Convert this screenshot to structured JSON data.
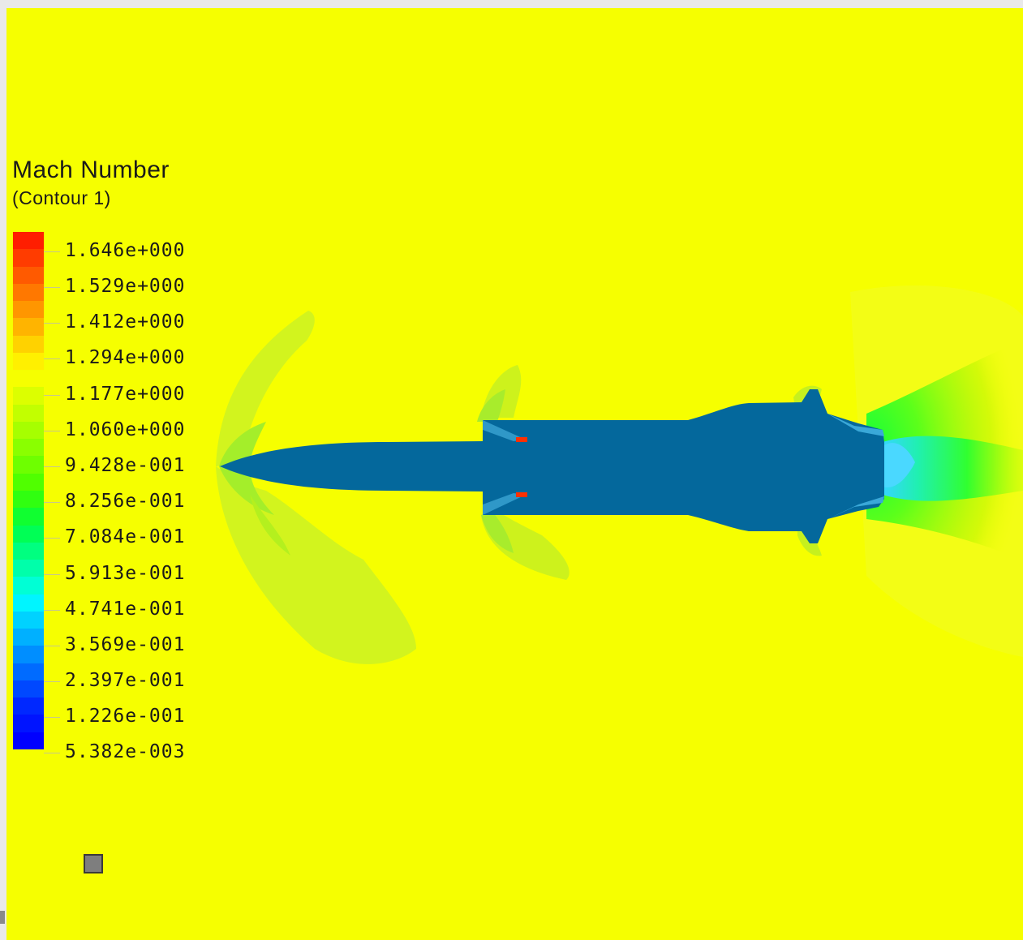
{
  "legend": {
    "title": "Mach Number",
    "subtitle": "(Contour 1)",
    "labels": [
      "1.646e+000",
      "1.529e+000",
      "1.412e+000",
      "1.294e+000",
      "1.177e+000",
      "1.060e+000",
      "9.428e-001",
      "8.256e-001",
      "7.084e-001",
      "5.913e-001",
      "4.741e-001",
      "3.569e-001",
      "2.397e-001",
      "1.226e-001",
      "5.382e-003"
    ],
    "bands_top_to_bottom": [
      "#ff1e00",
      "#ff3c00",
      "#ff5a00",
      "#ff7800",
      "#ff9600",
      "#ffb400",
      "#ffd200",
      "#fff000",
      "#f6ff00",
      "#dcff00",
      "#c2ff00",
      "#a6ff00",
      "#8aff00",
      "#6eff00",
      "#50ff00",
      "#30ff10",
      "#10ff30",
      "#00ff55",
      "#00ff80",
      "#00ffaa",
      "#00ffd5",
      "#00f5ff",
      "#00d2ff",
      "#00b0ff",
      "#008eff",
      "#006bff",
      "#0048ff",
      "#0028ff",
      "#0014ff",
      "#0000ff"
    ]
  },
  "colors": {
    "freestream": "#f6ff00",
    "body": "#04689c",
    "shock_light": "#ccff00",
    "shock_mid": "#b6f51a",
    "wake_green": "#3cf53c",
    "wake_cyan": "#35d6ff",
    "hot_spot": "#ff3000"
  },
  "icons": {
    "axis_triad": "axis-triad-icon"
  }
}
